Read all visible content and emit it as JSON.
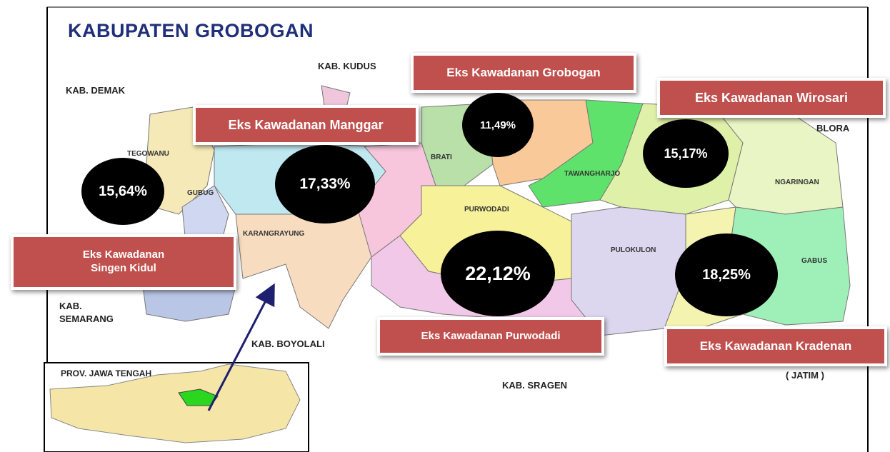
{
  "title": "KABUPATEN GROBOGAN",
  "neighbors": [
    "KAB. KUDUS",
    "KAB. DEMAK",
    "BLORA",
    "KAB. SEMARANG",
    "KAB. BOYOLALI",
    "KAB. SRAGEN",
    "( JATIM )"
  ],
  "districts": [
    "TEGOWANU",
    "GUBUG",
    "KARANGRAYUNG",
    "BRATI",
    "PURWODADI",
    "TAWANGHARJO",
    "NGARINGAN",
    "PULOKULON",
    "GABUS"
  ],
  "inset": {
    "label": "PROV. JAWA TENGAH"
  },
  "regions": [
    {
      "name": "Eks Kawadanan Grobogan",
      "share": "11,49%"
    },
    {
      "name": "Eks Kawadanan Manggar",
      "share": "17,33%"
    },
    {
      "name": "Eks Kawadanan Wirosari",
      "share": "15,17%"
    },
    {
      "name": "Eks Kawadanan Singen Kidul",
      "share": "15,64%"
    },
    {
      "name": "Eks Kawadanan Purwodadi",
      "share": "22,12%"
    },
    {
      "name": "Eks Kawadanan Kradenan",
      "share": "18,25%"
    }
  ]
}
